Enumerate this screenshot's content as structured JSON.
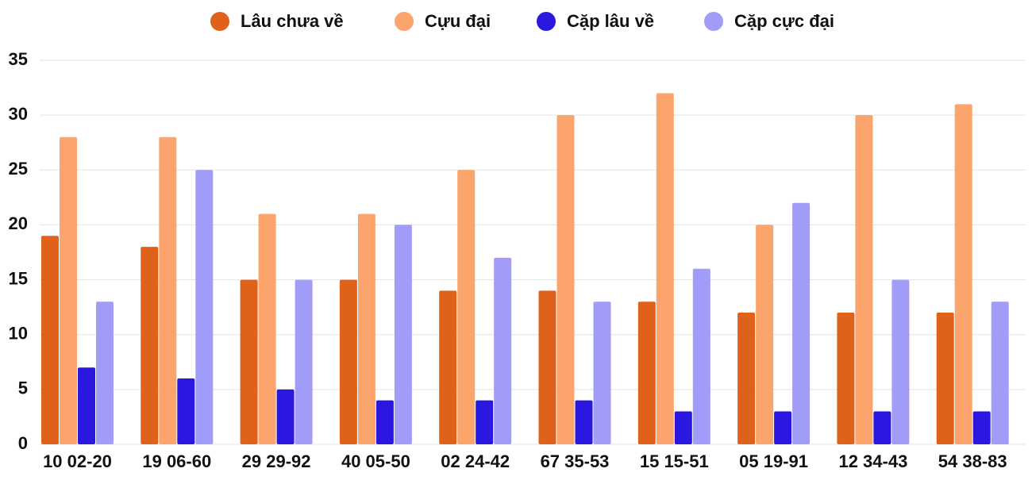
{
  "chart_data": {
    "type": "bar",
    "categories": [
      "10 02-20",
      "19 06-60",
      "29 29-92",
      "40 05-50",
      "02 24-42",
      "67 35-53",
      "15 15-51",
      "05 19-91",
      "12 34-43",
      "54 38-83"
    ],
    "series": [
      {
        "name": "Lâu chưa về",
        "color": "#e0621a",
        "values": [
          19,
          18,
          15,
          15,
          14,
          14,
          13,
          12,
          12,
          12
        ]
      },
      {
        "name": "Cựu đại",
        "color": "#fba46c",
        "values": [
          28,
          28,
          21,
          21,
          25,
          30,
          32,
          20,
          30,
          31
        ]
      },
      {
        "name": "Cặp lâu về",
        "color": "#2a17e0",
        "values": [
          7,
          6,
          5,
          4,
          4,
          4,
          3,
          3,
          3,
          3
        ]
      },
      {
        "name": "Cặp cực đại",
        "color": "#a29cf9",
        "values": [
          13,
          25,
          15,
          20,
          17,
          13,
          16,
          22,
          15,
          13
        ]
      }
    ],
    "ylim": [
      0,
      35
    ],
    "yticks": [
      0,
      5,
      10,
      15,
      20,
      25,
      30,
      35
    ],
    "grid": true,
    "legend": "top"
  }
}
